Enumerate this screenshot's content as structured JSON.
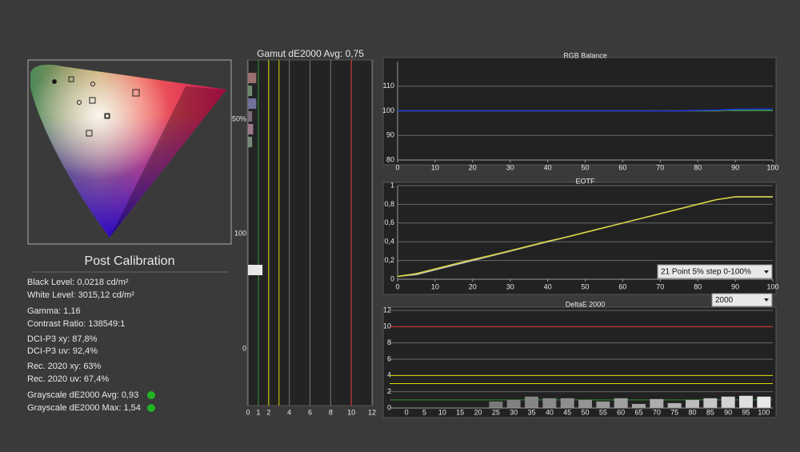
{
  "stats": {
    "title": "Post Calibration",
    "lines": [
      "Black Level: 0,0218 cd/m²",
      "White Level: 3015,12 cd/m²",
      "Gamma: 1,16",
      "Contrast Ratio: 138549:1",
      "DCI-P3 xy: 87,8%",
      "DCI-P3 uv: 92,4%",
      "Rec. 2020 xy: 63%",
      "Rec. 2020 uv: 67,4%",
      "Grayscale dE2000 Avg: 0,93",
      "Grayscale dE2000 Max: 1,54"
    ]
  },
  "chart_data": [
    {
      "type": "hbar",
      "title": "Gamut dE2000 Avg:  0,75",
      "y_labels": [
        "50%",
        "100",
        "0"
      ],
      "categories": [
        null,
        null,
        null,
        null,
        null,
        null,
        null,
        null,
        null,
        null,
        null,
        null,
        null,
        null,
        null,
        null,
        null,
        null,
        null,
        null,
        null,
        null,
        null,
        null,
        null,
        null
      ],
      "values": [
        0.8,
        0.4,
        0.8,
        0.4,
        0.5,
        0.4,
        null,
        null,
        null,
        null,
        null,
        null,
        null,
        null,
        null,
        1.4,
        null,
        null,
        null,
        null,
        null,
        null,
        null,
        null,
        null,
        null
      ],
      "colors": [
        "#9b7070",
        "#6f8a6f",
        "#70709b",
        "#7a6a7a",
        "#9a7a8a",
        "#7a8a7a",
        null,
        null,
        null,
        null,
        null,
        null,
        null,
        null,
        null,
        "#e8e8e8",
        null,
        null,
        null,
        null,
        null,
        null,
        null,
        null,
        null,
        null
      ],
      "xlim": [
        0,
        12
      ],
      "xticks": [
        0,
        1,
        2,
        4,
        6,
        8,
        10,
        12
      ],
      "grid": true,
      "thresholds": [
        {
          "value": 1,
          "color": "#2e8b2e"
        },
        {
          "value": 2,
          "color": "#d8d800"
        },
        {
          "value": 3,
          "color": "#d8d800"
        },
        {
          "value": 10,
          "color": "#e03030"
        }
      ]
    },
    {
      "type": "line",
      "title": "RGB Balance",
      "x": [
        0,
        5,
        10,
        15,
        20,
        25,
        30,
        35,
        40,
        45,
        50,
        55,
        60,
        65,
        70,
        75,
        80,
        85,
        90,
        95,
        100
      ],
      "series": [
        {
          "color": "#e02020",
          "values": [
            100,
            100,
            100,
            100,
            100,
            100,
            100,
            100,
            100,
            100,
            100,
            100,
            100,
            100,
            100,
            100,
            100,
            99.9,
            100.3,
            100.4,
            100.5
          ]
        },
        {
          "color": "#20a030",
          "values": [
            100,
            100,
            100,
            100,
            100,
            100,
            100,
            100,
            100,
            100,
            100,
            100,
            100,
            100,
            100,
            100,
            100,
            100,
            100.3,
            100.2,
            100.2
          ]
        },
        {
          "color": "#2030e0",
          "values": [
            100,
            100,
            100,
            100,
            100,
            100,
            100,
            100,
            100,
            100,
            100,
            100,
            100,
            100,
            99.9,
            100,
            100.2,
            100.3,
            100.6,
            100.7,
            100.7
          ]
        }
      ],
      "xlim": [
        0,
        100
      ],
      "xticks": [
        0,
        10,
        20,
        30,
        40,
        50,
        60,
        70,
        80,
        90,
        100
      ],
      "ylim": [
        80,
        120
      ],
      "yticks": [
        80,
        90,
        100,
        110
      ],
      "grid": true
    },
    {
      "type": "line",
      "title": "EOTF",
      "x": [
        0,
        5,
        10,
        15,
        20,
        25,
        30,
        35,
        40,
        45,
        50,
        55,
        60,
        65,
        70,
        75,
        80,
        85,
        90,
        95,
        100
      ],
      "series": [
        {
          "color": "#c8c8c8",
          "values": [
            0.03,
            0.05,
            0.1,
            0.15,
            0.2,
            0.25,
            0.3,
            0.35,
            0.4,
            0.45,
            0.5,
            0.55,
            0.6,
            0.65,
            0.7,
            0.75,
            0.8,
            0.85,
            0.88,
            0.88,
            0.88
          ]
        },
        {
          "color": "#d8d040",
          "values": [
            0.03,
            0.06,
            0.11,
            0.16,
            0.21,
            0.255,
            0.305,
            0.355,
            0.405,
            0.45,
            0.5,
            0.55,
            0.6,
            0.65,
            0.7,
            0.75,
            0.8,
            0.85,
            0.88,
            0.88,
            0.88
          ]
        }
      ],
      "xlim": [
        0,
        100
      ],
      "xticks": [
        0,
        10,
        20,
        30,
        40,
        50,
        60,
        70,
        80,
        90,
        100
      ],
      "ylim": [
        0,
        1
      ],
      "yticks": [
        0,
        {
          "value": 0.2,
          "label": "0,2"
        },
        {
          "value": 0.4,
          "label": "0,4"
        },
        {
          "value": 0.6,
          "label": "0,6"
        },
        {
          "value": 0.8,
          "label": "0,8"
        },
        1
      ],
      "grid": true,
      "dropdown": "21 Point 5% step 0-100%"
    },
    {
      "type": "bar",
      "title": "DeltaE 2000",
      "dropdown": "2000",
      "categories": [
        "0",
        "5",
        "10",
        "15",
        "20",
        "25",
        "30",
        "35",
        "40",
        "45",
        "50",
        "55",
        "60",
        "65",
        "70",
        "75",
        "80",
        "85",
        "90",
        "95",
        "100"
      ],
      "values": [
        0,
        0,
        0,
        0,
        0,
        0.8,
        1.0,
        1.4,
        1.2,
        1.2,
        1.0,
        0.8,
        1.2,
        0.5,
        1.1,
        0.6,
        1.0,
        1.2,
        1.4,
        1.5,
        1.4
      ],
      "colors": [
        "#777",
        "#777",
        "#777",
        "#777",
        "#777",
        "#7a7a7a",
        "#808080",
        "#858585",
        "#8a8a8a",
        "#8f8f8f",
        "#959595",
        "#9a9a9a",
        "#a0a0a0",
        "#a6a6a6",
        "#adadad",
        "#b4b4b4",
        "#bcbcbc",
        "#c6c6c6",
        "#d2d2d2",
        "#dedede",
        "#e8e8e8"
      ],
      "ylim": [
        0,
        12
      ],
      "yticks": [
        0,
        2,
        4,
        6,
        8,
        10,
        12
      ],
      "grid": true,
      "thresholds": [
        {
          "value": 1,
          "color": "#2e8b2e"
        },
        {
          "value": 3,
          "color": "#d8d800"
        },
        {
          "value": 4,
          "color": "#d8d800"
        },
        {
          "value": 10,
          "color": "#e03030"
        }
      ]
    }
  ]
}
